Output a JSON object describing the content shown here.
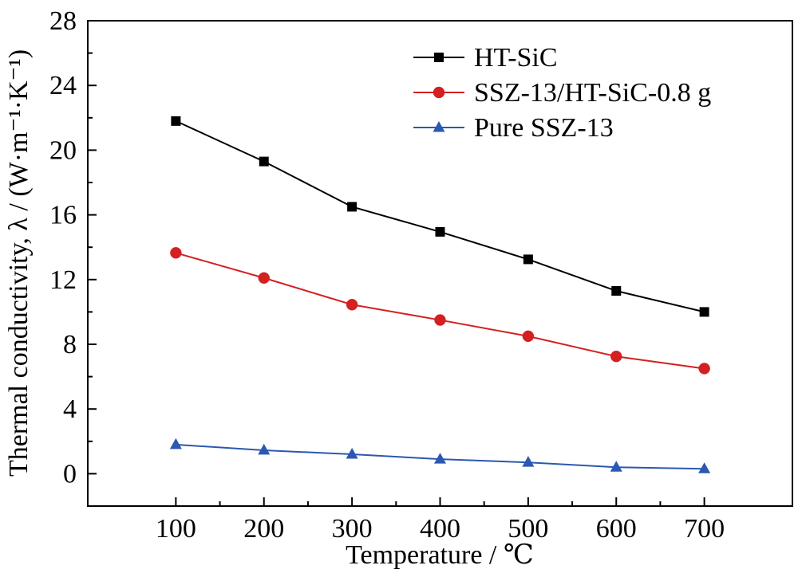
{
  "chart_data": {
    "type": "line",
    "xlabel": "Temperature / ℃",
    "ylabel": "Thermal conductivity, λ / (W·m⁻¹·K⁻¹)",
    "x": [
      100,
      200,
      300,
      400,
      500,
      600,
      700
    ],
    "xlim": [
      0,
      800
    ],
    "ylim": [
      -2,
      28
    ],
    "x_ticks": [
      "100",
      "200",
      "300",
      "400",
      "500",
      "600",
      "700"
    ],
    "y_ticks": [
      "0",
      "4",
      "8",
      "12",
      "16",
      "20",
      "24",
      "28"
    ],
    "grid": false,
    "legend_position": "top-right",
    "series": [
      {
        "name": "HT-SiC",
        "color": "#000000",
        "marker": "square",
        "values": [
          21.8,
          19.3,
          16.5,
          14.95,
          13.25,
          11.3,
          10.0
        ]
      },
      {
        "name": "SSZ-13/HT-SiC-0.8 g",
        "color": "#d42020",
        "marker": "circle",
        "values": [
          13.65,
          12.1,
          10.45,
          9.5,
          8.5,
          7.25,
          6.5
        ]
      },
      {
        "name": "Pure SSZ-13",
        "color": "#2b58b0",
        "marker": "triangle",
        "values": [
          1.8,
          1.45,
          1.2,
          0.9,
          0.7,
          0.4,
          0.3
        ]
      }
    ]
  }
}
